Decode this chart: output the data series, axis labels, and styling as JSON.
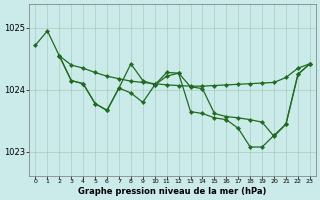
{
  "background_color": "#cbeaea",
  "grid_color": "#aaccbb",
  "line_color": "#1f6b1f",
  "title": "Graphe pression niveau de la mer (hPa)",
  "ylim": [
    1022.62,
    1025.38
  ],
  "xlim": [
    -0.5,
    23.5
  ],
  "yticks": [
    1023,
    1024,
    1025
  ],
  "xticks": [
    0,
    1,
    2,
    3,
    4,
    5,
    6,
    7,
    8,
    9,
    10,
    11,
    12,
    13,
    14,
    15,
    16,
    17,
    18,
    19,
    20,
    21,
    22,
    23
  ],
  "line1_x": [
    0,
    1,
    2,
    3,
    4,
    5,
    6,
    7,
    8,
    9,
    10,
    11,
    12,
    13,
    14,
    15,
    16,
    17,
    18,
    19,
    20,
    21,
    22,
    23
  ],
  "line1_y": [
    1024.72,
    1024.95,
    1024.55,
    1024.4,
    1024.35,
    1024.28,
    1024.22,
    1024.18,
    1024.14,
    1024.12,
    1024.1,
    1024.08,
    1024.07,
    1024.06,
    1024.06,
    1024.07,
    1024.08,
    1024.09,
    1024.1,
    1024.11,
    1024.12,
    1024.2,
    1024.35,
    1024.42
  ],
  "line2_x": [
    2,
    3,
    4,
    5,
    6,
    7,
    8,
    9,
    10,
    11,
    12,
    13,
    14,
    15,
    16,
    17,
    18,
    19,
    20,
    21,
    22,
    23
  ],
  "line2_y": [
    1024.55,
    1024.15,
    1024.1,
    1023.78,
    1023.67,
    1024.03,
    1024.42,
    1024.15,
    1024.08,
    1024.28,
    1024.27,
    1024.05,
    1024.02,
    1023.62,
    1023.57,
    1023.55,
    1023.52,
    1023.48,
    1023.25,
    1023.45,
    1024.25,
    1024.42
  ],
  "line3_x": [
    2,
    3,
    4,
    5,
    6,
    7,
    8,
    9,
    10,
    11,
    12,
    13,
    14,
    15,
    16,
    17,
    18,
    19,
    20,
    21,
    22,
    23
  ],
  "line3_y": [
    1024.55,
    1024.15,
    1024.1,
    1023.78,
    1023.67,
    1024.03,
    1023.95,
    1023.8,
    1024.08,
    1024.22,
    1024.27,
    1023.65,
    1023.62,
    1023.55,
    1023.52,
    1023.38,
    1023.08,
    1023.08,
    1023.27,
    1023.45,
    1024.25,
    1024.42
  ]
}
